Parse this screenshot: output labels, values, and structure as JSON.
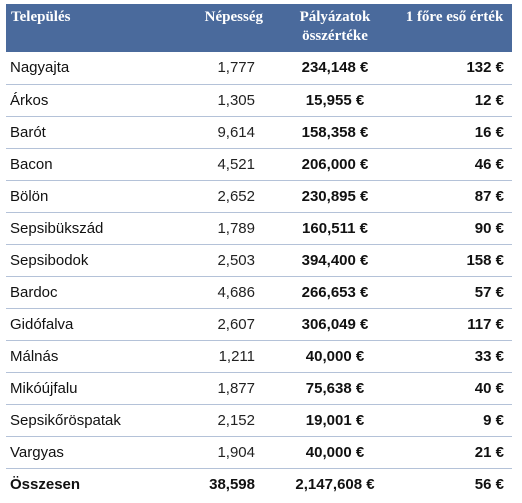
{
  "headers": {
    "settlement": "Település",
    "population": "Népesség",
    "grants_total": "Pályázatok összértéke",
    "per_capita": "1 főre eső érték"
  },
  "rows": [
    {
      "name": "Nagyajta",
      "population": "1,777",
      "total": "234,148 €",
      "per_capita": "132 €"
    },
    {
      "name": "Árkos",
      "population": "1,305",
      "total": "15,955 €",
      "per_capita": "12 €"
    },
    {
      "name": "Barót",
      "population": "9,614",
      "total": "158,358 €",
      "per_capita": "16 €"
    },
    {
      "name": "Bacon",
      "population": "4,521",
      "total": "206,000 €",
      "per_capita": "46 €"
    },
    {
      "name": "Bölön",
      "population": "2,652",
      "total": "230,895 €",
      "per_capita": "87 €"
    },
    {
      "name": "Sepsibükszád",
      "population": "1,789",
      "total": "160,511 €",
      "per_capita": "90 €"
    },
    {
      "name": "Sepsibodok",
      "population": "2,503",
      "total": "394,400 €",
      "per_capita": "158 €"
    },
    {
      "name": "Bardoc",
      "population": "4,686",
      "total": "266,653 €",
      "per_capita": "57 €"
    },
    {
      "name": "Gidófalva",
      "population": "2,607",
      "total": "306,049 €",
      "per_capita": "117 €"
    },
    {
      "name": "Málnás",
      "population": "1,211",
      "total": "40,000 €",
      "per_capita": "33 €"
    },
    {
      "name": "Mikóújfalu",
      "population": "1,877",
      "total": "75,638 €",
      "per_capita": "40 €"
    },
    {
      "name": "Sepsikőröspatak",
      "population": "2,152",
      "total": "19,001 €",
      "per_capita": "9 €"
    },
    {
      "name": "Vargyas",
      "population": "1,904",
      "total": "40,000 €",
      "per_capita": "21 €"
    }
  ],
  "total": {
    "name": "Összesen",
    "population": "38,598",
    "total": "2,147,608 €",
    "per_capita": "56 €"
  },
  "colors": {
    "header_bg": "#4a6a9c",
    "row_divider": "#b4c2d8"
  }
}
